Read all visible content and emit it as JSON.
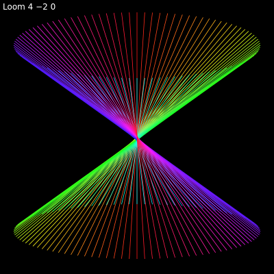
{
  "window": {
    "title": "Loom 4 −2 0"
  },
  "loom": {
    "background": "#000000",
    "string_count": 100,
    "hue_range": [
      0,
      360
    ]
  }
}
